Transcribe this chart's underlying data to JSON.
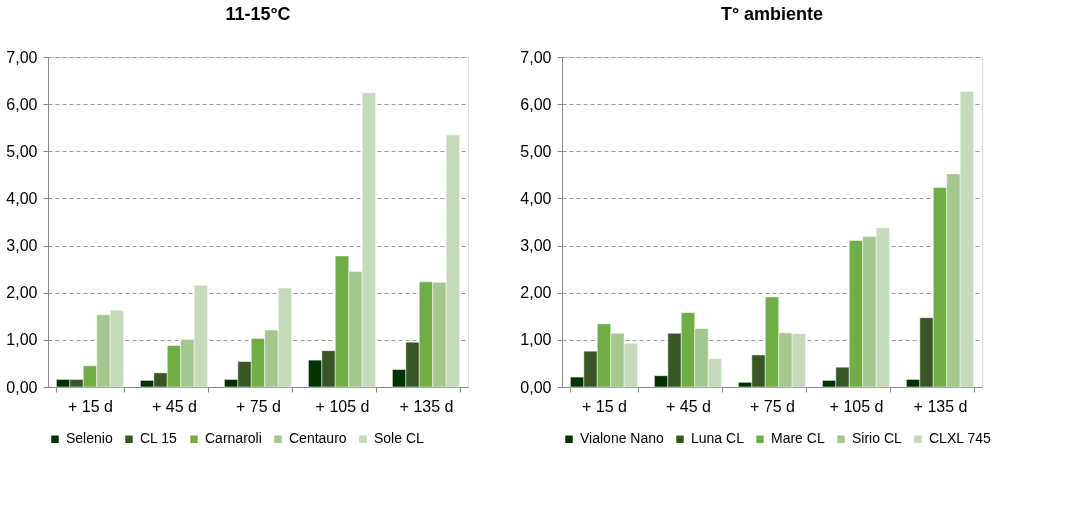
{
  "chart_data": [
    {
      "type": "bar",
      "title": "11-15°C",
      "categories": [
        "+ 15 d",
        "+ 45 d",
        "+ 75 d",
        "+ 105 d",
        "+ 135 d"
      ],
      "ylim": [
        0,
        7
      ],
      "yticks": [
        {
          "value": 0,
          "label": "0,00"
        },
        {
          "value": 1,
          "label": "1,00"
        },
        {
          "value": 2,
          "label": "2,00"
        },
        {
          "value": 3,
          "label": "3,00"
        },
        {
          "value": 4,
          "label": "4,00"
        },
        {
          "value": 5,
          "label": "5,00"
        },
        {
          "value": 6,
          "label": "6,00"
        },
        {
          "value": 7,
          "label": "7,00"
        }
      ],
      "grid": "y",
      "legend": "bottom",
      "series": [
        {
          "name": "Selenio",
          "color": "#003300",
          "values": [
            0.16,
            0.14,
            0.16,
            0.57,
            0.37
          ]
        },
        {
          "name": "CL 15",
          "color": "#375623",
          "values": [
            0.16,
            0.3,
            0.54,
            0.77,
            0.95
          ]
        },
        {
          "name": "Carnaroli",
          "color": "#70ad47",
          "values": [
            0.45,
            0.88,
            1.03,
            2.78,
            2.23
          ]
        },
        {
          "name": "Centauro",
          "color": "#a4c68f",
          "values": [
            1.53,
            1.01,
            1.21,
            2.45,
            2.22
          ]
        },
        {
          "name": "Sole CL",
          "color": "#c5d9bb",
          "values": [
            1.63,
            2.16,
            2.1,
            6.24,
            5.35
          ]
        }
      ]
    },
    {
      "type": "bar",
      "title": "T° ambiente",
      "categories": [
        "+ 15 d",
        "+ 45 d",
        "+ 75 d",
        "+ 105 d",
        "+ 135 d"
      ],
      "ylim": [
        0,
        7
      ],
      "yticks": [
        {
          "value": 0,
          "label": "0,00"
        },
        {
          "value": 1,
          "label": "1,00"
        },
        {
          "value": 2,
          "label": "2,00"
        },
        {
          "value": 3,
          "label": "3,00"
        },
        {
          "value": 4,
          "label": "4,00"
        },
        {
          "value": 5,
          "label": "5,00"
        },
        {
          "value": 6,
          "label": "6,00"
        },
        {
          "value": 7,
          "label": "7,00"
        }
      ],
      "grid": "y",
      "legend": "bottom",
      "series": [
        {
          "name": "Vialone Nano",
          "color": "#003300",
          "values": [
            0.21,
            0.24,
            0.1,
            0.14,
            0.16
          ]
        },
        {
          "name": "Luna CL",
          "color": "#375623",
          "values": [
            0.76,
            1.14,
            0.68,
            0.42,
            1.47
          ]
        },
        {
          "name": "Mare CL",
          "color": "#70ad47",
          "values": [
            1.34,
            1.58,
            1.91,
            3.11,
            4.23
          ]
        },
        {
          "name": "Sirio CL",
          "color": "#a4c68f",
          "values": [
            1.14,
            1.24,
            1.15,
            3.19,
            4.52
          ]
        },
        {
          "name": "CLXL 745",
          "color": "#c5d9bb",
          "values": [
            0.93,
            0.6,
            1.13,
            3.38,
            6.27
          ]
        }
      ]
    }
  ]
}
